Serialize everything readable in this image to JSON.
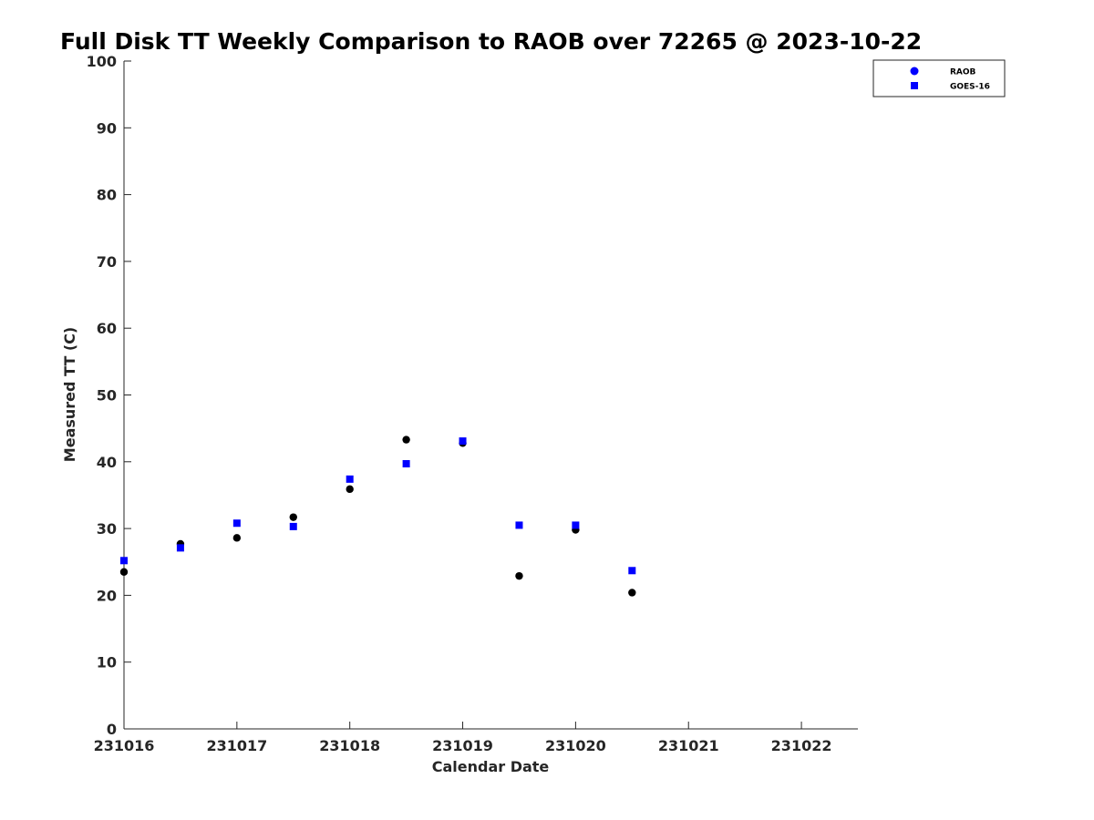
{
  "chart_data": {
    "type": "scatter",
    "title": "Full Disk TT Weekly Comparison to RAOB over 72265 @ 2023-10-22",
    "xlabel": "Calendar Date",
    "ylabel": "Measured TT (C)",
    "xlim": [
      0,
      6.5
    ],
    "ylim": [
      0,
      100
    ],
    "x_ticks": [
      {
        "value": 0,
        "label": "231016"
      },
      {
        "value": 1,
        "label": "231017"
      },
      {
        "value": 2,
        "label": "231018"
      },
      {
        "value": 3,
        "label": "231019"
      },
      {
        "value": 4,
        "label": "231020"
      },
      {
        "value": 5,
        "label": "231021"
      },
      {
        "value": 6,
        "label": "231022"
      }
    ],
    "y_ticks": [
      {
        "value": 0,
        "label": "0"
      },
      {
        "value": 10,
        "label": "10"
      },
      {
        "value": 20,
        "label": "20"
      },
      {
        "value": 30,
        "label": "30"
      },
      {
        "value": 40,
        "label": "40"
      },
      {
        "value": 50,
        "label": "50"
      },
      {
        "value": 60,
        "label": "60"
      },
      {
        "value": 70,
        "label": "70"
      },
      {
        "value": 80,
        "label": "80"
      },
      {
        "value": 90,
        "label": "90"
      },
      {
        "value": 100,
        "label": "100"
      }
    ],
    "legend_position": "top-right",
    "series": [
      {
        "name": "RAOB",
        "marker": "circle",
        "marker_color": "#000000",
        "legend_color": "#0000ff",
        "x": [
          0,
          0.5,
          1,
          1.5,
          2,
          2.5,
          3,
          3.5,
          4,
          4.5
        ],
        "values": [
          23.5,
          27.7,
          28.6,
          31.7,
          35.9,
          43.3,
          42.8,
          22.9,
          29.8,
          20.4
        ]
      },
      {
        "name": "GOES-16",
        "marker": "square",
        "marker_color": "#0000ff",
        "legend_color": "#0000ff",
        "x": [
          0,
          0.5,
          1,
          1.5,
          2,
          2.5,
          3,
          3.5,
          4,
          4.5
        ],
        "values": [
          25.2,
          27.1,
          30.8,
          30.3,
          37.4,
          39.7,
          43.1,
          30.5,
          30.5,
          23.7
        ]
      }
    ]
  }
}
